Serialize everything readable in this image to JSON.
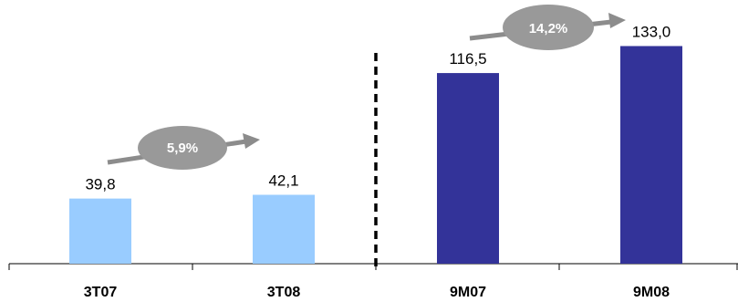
{
  "chart_data": {
    "type": "bar",
    "categories": [
      "3T07",
      "3T08",
      "9M07",
      "9M08"
    ],
    "values": [
      39.8,
      42.1,
      116.5,
      133.0
    ],
    "value_labels": [
      "39,8",
      "42,1",
      "116,5",
      "133,0"
    ],
    "ylim": [
      0,
      150
    ],
    "grid": false,
    "colors": {
      "quarter_bars": "#99ccff",
      "nine_month_bars": "#333399",
      "growth_badge": "#999999",
      "growth_arrow": "#8c8c8c",
      "separator": "#000000"
    },
    "annotations": [
      {
        "type": "growth-badge",
        "label": "5,9%",
        "from": "3T07",
        "to": "3T08"
      },
      {
        "type": "growth-badge",
        "label": "14,2%",
        "from": "9M07",
        "to": "9M08"
      }
    ]
  }
}
